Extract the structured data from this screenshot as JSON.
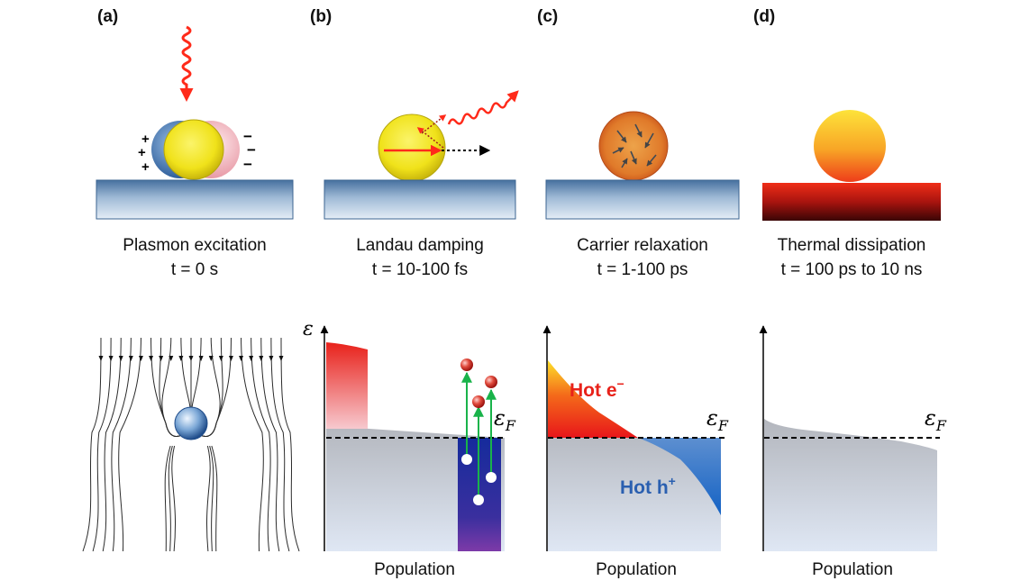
{
  "panels": [
    {
      "letter": "(a)",
      "title": "Plasmon excitation",
      "time": "t = 0 s"
    },
    {
      "letter": "(b)",
      "title": "Landau damping",
      "time": "t = 10-100 fs"
    },
    {
      "letter": "(c)",
      "title": "Carrier relaxation",
      "time": "t = 1-100 ps"
    },
    {
      "letter": "(d)",
      "title": "Thermal dissipation",
      "time": "t = 100 ps to 10 ns"
    }
  ],
  "charge_signs": {
    "plus": "+",
    "minus": "−"
  },
  "plots": {
    "energy_axis_symbol": "ε",
    "fermi_symbol": "ε",
    "fermi_subscript": "F",
    "x_label": "Population",
    "hot_electron_label": "Hot e",
    "hot_electron_sup": "−",
    "hot_hole_label": "Hot h",
    "hot_hole_sup": "+"
  },
  "colors": {
    "substrate": "#5b86b8",
    "gold_particle": "#f2e41c",
    "photon": "#ff2a1a",
    "hot_electron": "#e8221a",
    "hot_hole": "#2a5fb0",
    "fermi_sea": "#b8bcc6",
    "transition_arrow": "#19b34a"
  }
}
